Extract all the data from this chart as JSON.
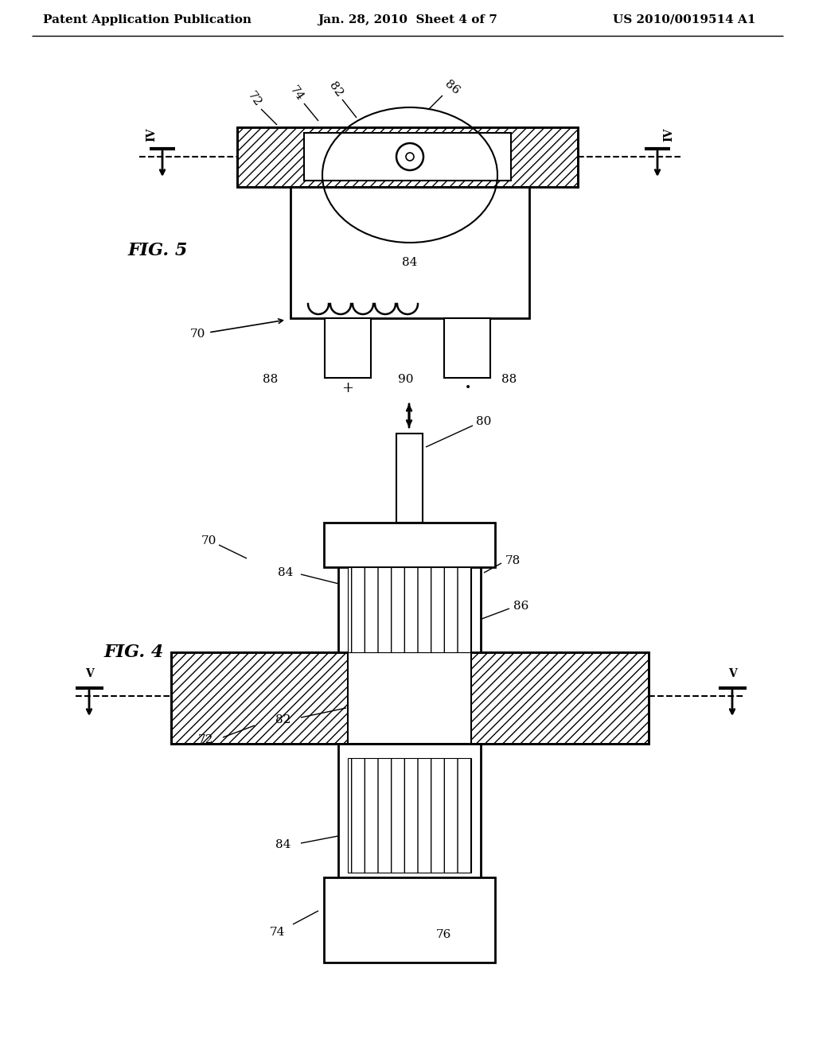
{
  "bg_color": "#ffffff",
  "line_color": "#000000",
  "hatch_color": "#000000",
  "header_left": "Patent Application Publication",
  "header_mid": "Jan. 28, 2010  Sheet 4 of 7",
  "header_right": "US 2010/0019514 A1",
  "fig5_label": "FIG. 5",
  "fig4_label": "FIG. 4"
}
